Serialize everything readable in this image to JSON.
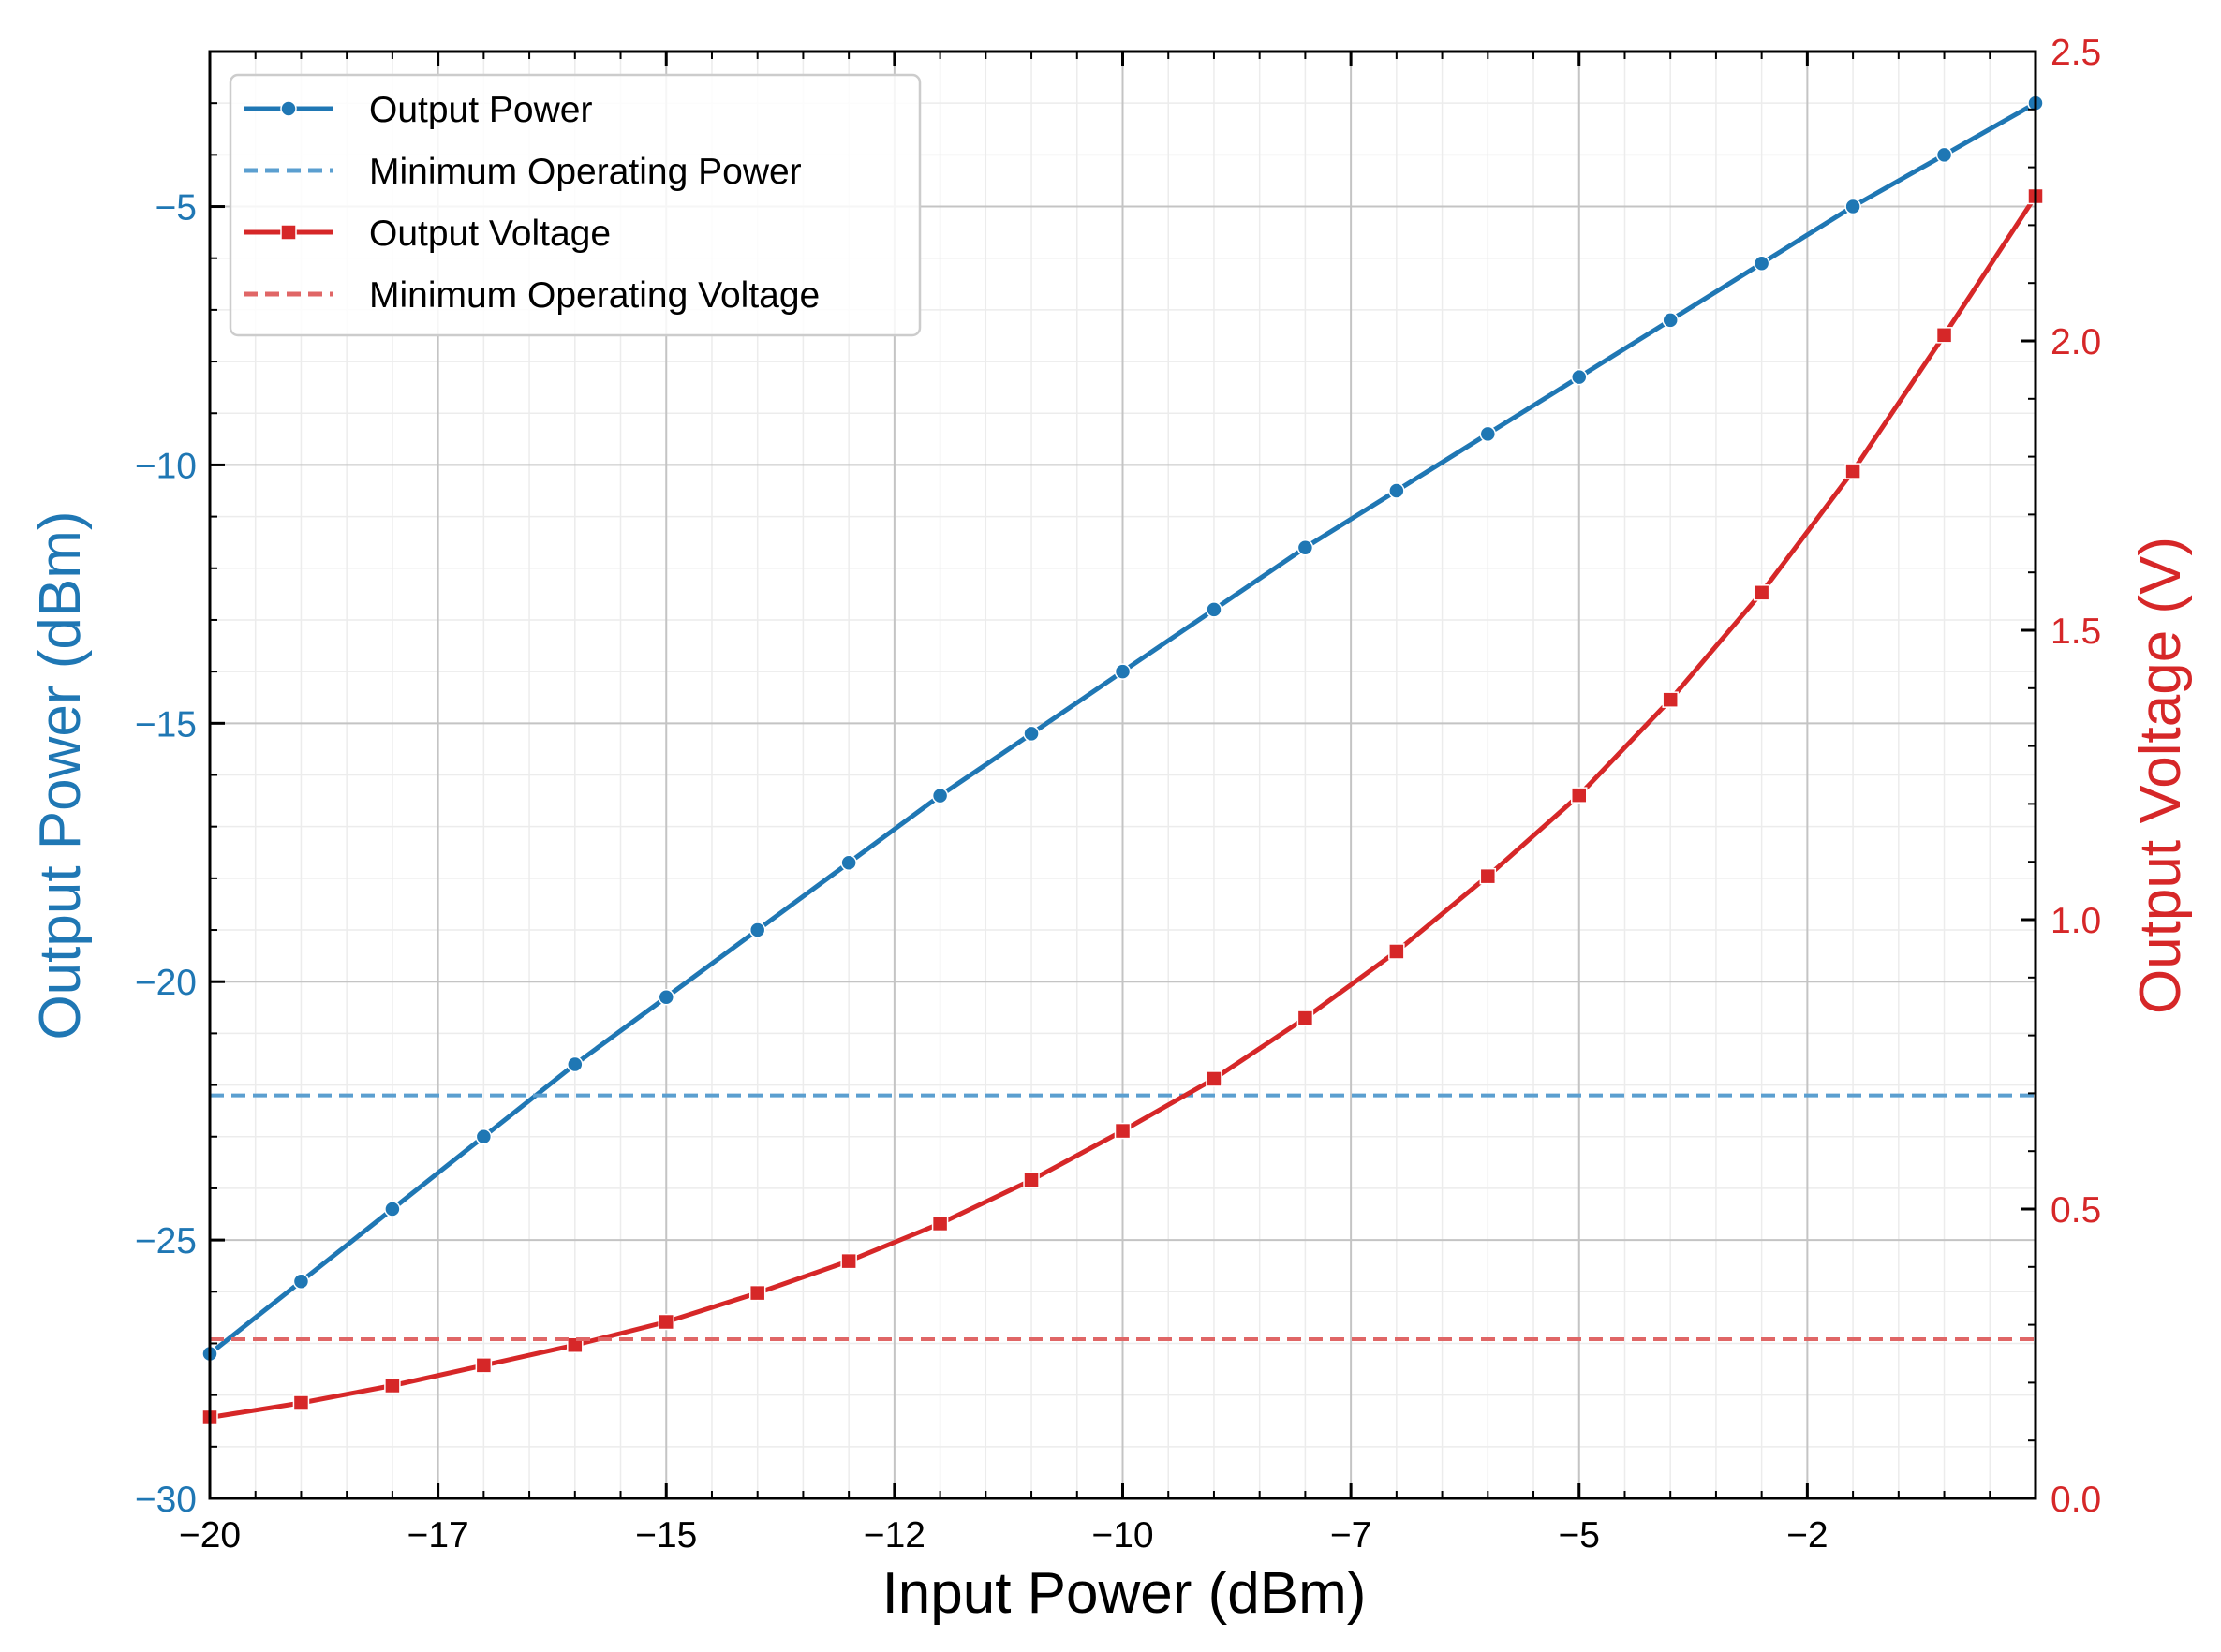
{
  "chart_data": {
    "type": "line",
    "title": "",
    "xlabel": "Input Power (dBm)",
    "ylabel_left": "Output Power (dBm)",
    "ylabel_right": "Output Voltage (V)",
    "xlim": [
      -20,
      0
    ],
    "ylim_left": [
      -30,
      -2
    ],
    "ylim_right": [
      0.0,
      2.5
    ],
    "x_ticks": [
      -20,
      -17.5,
      -15,
      -12.5,
      -10,
      -7.5,
      -5,
      -2.5
    ],
    "x_tick_labels": [
      "−20",
      "−17",
      "−15",
      "−12",
      "−10",
      "−7",
      "−5",
      "−2"
    ],
    "y_left_ticks": [
      -30,
      -25,
      -20,
      -15,
      -10,
      -5
    ],
    "y_left_tick_labels": [
      "−30",
      "−25",
      "−20",
      "−15",
      "−10",
      "−5"
    ],
    "y_right_ticks": [
      0.0,
      0.5,
      1.0,
      1.5,
      2.0,
      2.5
    ],
    "y_right_tick_labels": [
      "0.0",
      "0.5",
      "1.0",
      "1.5",
      "2.0",
      "2.5"
    ],
    "grid": true,
    "minor_grid": true,
    "legend_position": "top-left",
    "x": [
      -20,
      -19,
      -18,
      -17,
      -16,
      -15,
      -14,
      -13,
      -12,
      -11,
      -10,
      -9,
      -8,
      -7,
      -6,
      -5,
      -4,
      -3,
      -2,
      -1,
      0
    ],
    "series": [
      {
        "name": "Output Power",
        "axis": "left",
        "color": "#1f77b4",
        "style": "solid",
        "marker": "circle",
        "values": [
          -27.2,
          -25.8,
          -24.4,
          -23.0,
          -21.6,
          -20.3,
          -19.0,
          -17.7,
          -16.4,
          -15.2,
          -14.0,
          -12.8,
          -11.6,
          -10.5,
          -9.4,
          -8.3,
          -7.2,
          -6.1,
          -5.0,
          -4.0,
          -3.0
        ]
      },
      {
        "name": "Minimum Operating Power",
        "axis": "left",
        "color": "#5b9fd0",
        "style": "dashed",
        "marker": "none",
        "constant": -22.2
      },
      {
        "name": "Output Voltage",
        "axis": "right",
        "color": "#d62728",
        "style": "solid",
        "marker": "square",
        "values": [
          0.14,
          0.165,
          0.195,
          0.23,
          0.265,
          0.305,
          0.355,
          0.41,
          0.475,
          0.55,
          0.635,
          0.725,
          0.83,
          0.945,
          1.075,
          1.215,
          1.38,
          1.565,
          1.775,
          2.01,
          2.25
        ]
      },
      {
        "name": "Minimum Operating Voltage",
        "axis": "right",
        "color": "#e06666",
        "style": "dashed",
        "marker": "none",
        "constant": 0.275
      }
    ],
    "colors": {
      "left_axis": "#1f77b4",
      "right_axis": "#d62728",
      "grid_major": "#c4c4c4",
      "grid_minor": "#ececec"
    }
  }
}
